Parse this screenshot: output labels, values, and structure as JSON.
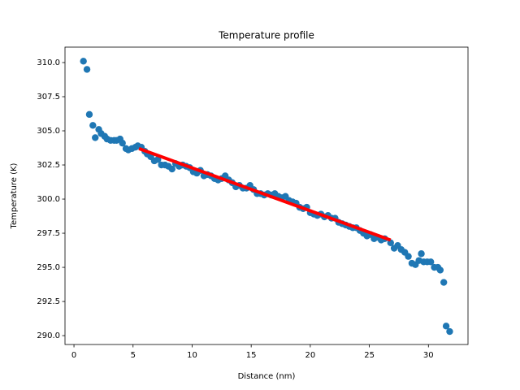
{
  "chart_data": {
    "type": "scatter",
    "title": "Temperature profile",
    "xlabel": "Distance (nm)",
    "ylabel": "Temperature (K)",
    "xlim": [
      -0.76,
      33.35
    ],
    "ylim": [
      289.35,
      311.13
    ],
    "xticks": [
      0,
      5,
      10,
      15,
      20,
      25,
      30
    ],
    "yticks": [
      {
        "value": 290,
        "label": "290.0"
      },
      {
        "value": 292.5,
        "label": "292.5"
      },
      {
        "value": 295,
        "label": "295.0"
      },
      {
        "value": 297.5,
        "label": "297.5"
      },
      {
        "value": 300,
        "label": "300.0"
      },
      {
        "value": 302.5,
        "label": "302.5"
      },
      {
        "value": 305,
        "label": "305.0"
      },
      {
        "value": 307.5,
        "label": "307.5"
      },
      {
        "value": 310,
        "label": "310.0"
      }
    ],
    "series": [
      {
        "type": "scatter",
        "color": "#1f77b4",
        "x": [
          0.8,
          1.1,
          1.3,
          1.6,
          1.8,
          2.1,
          2.3,
          2.6,
          2.8,
          3.1,
          3.4,
          3.6,
          3.9,
          4.1,
          4.4,
          4.6,
          4.9,
          5.2,
          5.4,
          5.7,
          6.0,
          6.2,
          6.5,
          6.8,
          7.1,
          7.4,
          7.7,
          8.0,
          8.3,
          8.6,
          8.9,
          9.2,
          9.5,
          9.8,
          10.1,
          10.4,
          10.7,
          11.0,
          11.3,
          11.6,
          11.9,
          12.2,
          12.5,
          12.8,
          13.1,
          13.4,
          13.7,
          14.0,
          14.3,
          14.6,
          14.9,
          15.2,
          15.5,
          15.8,
          16.1,
          16.4,
          16.7,
          17.0,
          17.3,
          17.6,
          17.9,
          18.2,
          18.5,
          18.8,
          19.1,
          19.4,
          19.7,
          20.0,
          20.3,
          20.6,
          20.9,
          21.2,
          21.5,
          21.8,
          22.1,
          22.4,
          22.7,
          23.0,
          23.3,
          23.6,
          23.9,
          24.2,
          24.5,
          24.8,
          25.1,
          25.4,
          25.7,
          26.0,
          26.3,
          26.8,
          27.1,
          27.4,
          27.7,
          28.0,
          28.3,
          28.6,
          28.9,
          29.2,
          29.4,
          29.6,
          29.9,
          30.2,
          30.5,
          30.8,
          31.0,
          31.3,
          31.5,
          31.8
        ],
        "values": [
          310.1,
          309.5,
          306.2,
          305.4,
          304.5,
          305.1,
          304.8,
          304.6,
          304.4,
          304.3,
          304.3,
          304.3,
          304.4,
          304.1,
          303.7,
          303.6,
          303.7,
          303.8,
          303.9,
          303.8,
          303.5,
          303.3,
          303.1,
          302.8,
          302.9,
          302.5,
          302.5,
          302.4,
          302.2,
          302.6,
          302.4,
          302.5,
          302.4,
          302.3,
          302.0,
          301.9,
          302.1,
          301.7,
          301.8,
          301.7,
          301.5,
          301.4,
          301.5,
          301.7,
          301.4,
          301.2,
          300.9,
          301.0,
          300.8,
          300.8,
          301.0,
          300.7,
          300.4,
          300.4,
          300.3,
          300.4,
          300.3,
          300.4,
          300.2,
          300.1,
          300.2,
          299.9,
          299.8,
          299.7,
          299.4,
          299.3,
          299.4,
          299.0,
          298.9,
          298.8,
          298.9,
          298.7,
          298.8,
          298.6,
          298.6,
          298.3,
          298.2,
          298.1,
          298.0,
          297.9,
          297.9,
          297.7,
          297.5,
          297.3,
          297.4,
          297.1,
          297.2,
          297.0,
          297.1,
          296.8,
          296.4,
          296.6,
          296.3,
          296.1,
          295.8,
          295.3,
          295.2,
          295.5,
          296.0,
          295.4,
          295.4,
          295.4,
          295.0,
          295.0,
          294.8,
          293.9,
          290.7,
          290.3
        ]
      },
      {
        "type": "line",
        "color": "#ff0000",
        "x": [
          5.5,
          26.8
        ],
        "values": [
          303.7,
          297.0
        ]
      }
    ]
  }
}
